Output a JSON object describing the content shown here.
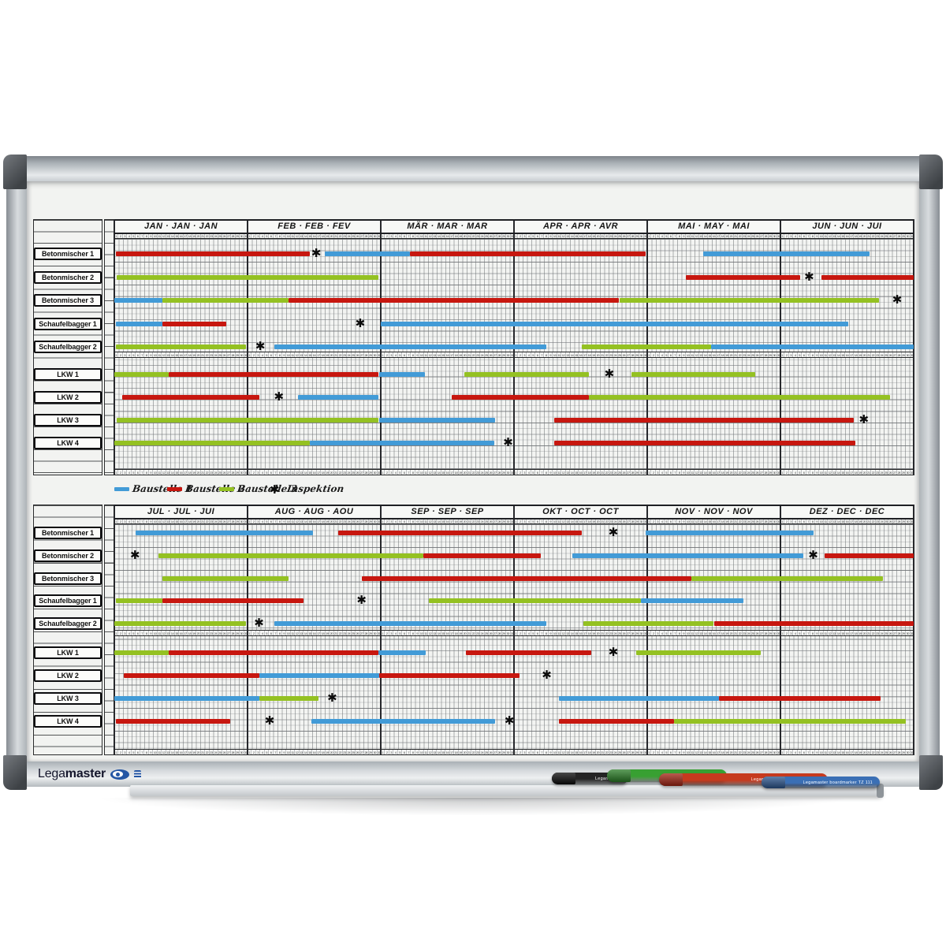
{
  "brand": {
    "prefix": "Lega",
    "suffix": "master"
  },
  "colors": {
    "blue": "#429BD7",
    "red": "#C7170F",
    "green": "#94C122",
    "frame_silver": "#C6CBCF",
    "corner_gray": "#4C5054",
    "surface_white": "#F2F3F1",
    "logo_blue": "#2456A4"
  },
  "legend": {
    "items": [
      {
        "key": "blue",
        "label": "Baustelle 1"
      },
      {
        "key": "red",
        "label": "Baustelle 2"
      },
      {
        "key": "green",
        "label": "Baustelle 3"
      }
    ],
    "inspection": {
      "symbol": "✱",
      "label": "Inspektion"
    }
  },
  "tray_markers": [
    {
      "color": "#242424",
      "cap": "#0a0a0a",
      "text": "Legamaster"
    },
    {
      "color": "#38a032",
      "cap": "#2a7d26",
      "text": ""
    },
    {
      "color": "#c63a1e",
      "cap": "#a32413",
      "text": "Legamaster  boardmarker TZ 111"
    },
    {
      "color": "#3a6fb5",
      "cap": "#2c568f",
      "text": "Legamaster  boardmarker TZ 111"
    }
  ],
  "chart_data": {
    "type": "bar",
    "variant": "year-planner-gantt",
    "days_per_month": 31,
    "resources": [
      "Betonmischer 1",
      "Betonmischer 2",
      "Betonmischer 3",
      "Schaufelbagger 1",
      "Schaufelbagger 2",
      "LKW 1",
      "LKW 2",
      "LKW 3",
      "LKW 4"
    ],
    "legend_note": "bar positions are in months from start of half-year (0-6); colors keyed to legend Baustelle 1=blue, 2=red, 3=green; marks are Inspektion asterisks",
    "halves": [
      {
        "months": [
          "JAN · JAN · JAN",
          "FEB · FEB · FEV",
          "MÄR · MAR · MAR",
          "APR · APR · AVR",
          "MAI · MAY · MAI",
          "JUN · JUN · JUI"
        ],
        "bars": [
          {
            "row": 0,
            "segments": [
              [
                "red",
                0.01,
                1.47
              ],
              [
                "blue",
                1.58,
                2.22
              ],
              [
                "red",
                2.22,
                3.99
              ],
              [
                "blue",
                4.42,
                5.67
              ]
            ],
            "marks": [
              1.52
            ]
          },
          {
            "row": 1,
            "segments": [
              [
                "green",
                0.02,
                1.98
              ],
              [
                "red",
                4.29,
                5.15
              ],
              [
                "red",
                5.31,
                6.0
              ]
            ],
            "marks": [
              5.22
            ]
          },
          {
            "row": 2,
            "segments": [
              [
                "blue",
                0.0,
                0.36
              ],
              [
                "green",
                0.36,
                1.31
              ],
              [
                "red",
                1.31,
                3.79
              ],
              [
                "green",
                3.79,
                5.74
              ]
            ],
            "marks": [
              5.88
            ]
          },
          {
            "row": 3,
            "segments": [
              [
                "blue",
                0.01,
                0.36
              ],
              [
                "red",
                0.36,
                0.84
              ],
              [
                "blue",
                2.0,
                5.51
              ]
            ],
            "marks": [
              1.85
            ]
          },
          {
            "row": 4,
            "segments": [
              [
                "green",
                0.01,
                0.99
              ],
              [
                "blue",
                1.2,
                3.24
              ],
              [
                "green",
                3.51,
                4.48
              ],
              [
                "blue",
                4.48,
                6.0
              ]
            ],
            "marks": [
              1.1
            ]
          },
          {
            "row": 5,
            "segments": [
              [
                "green",
                0.0,
                0.41
              ],
              [
                "red",
                0.41,
                1.98
              ],
              [
                "blue",
                1.99,
                2.33
              ],
              [
                "green",
                2.63,
                3.56
              ],
              [
                "green",
                3.88,
                4.81
              ]
            ],
            "marks": [
              3.72
            ]
          },
          {
            "row": 6,
            "segments": [
              [
                "red",
                0.06,
                1.09
              ],
              [
                "blue",
                1.38,
                1.98
              ],
              [
                "red",
                2.53,
                3.56
              ],
              [
                "green",
                3.56,
                5.82
              ]
            ],
            "marks": [
              1.24
            ]
          },
          {
            "row": 7,
            "segments": [
              [
                "green",
                0.02,
                1.98
              ],
              [
                "blue",
                1.99,
                2.86
              ],
              [
                "red",
                3.3,
                5.55
              ]
            ],
            "marks": [
              5.63
            ]
          },
          {
            "row": 8,
            "segments": [
              [
                "green",
                0.0,
                1.47
              ],
              [
                "blue",
                1.47,
                2.85
              ],
              [
                "red",
                3.3,
                5.56
              ]
            ],
            "marks": [
              2.96
            ]
          }
        ]
      },
      {
        "months": [
          "JUL · JUL · JUI",
          "AUG · AUG · AOU",
          "SEP · SEP · SEP",
          "OKT · OCT · OCT",
          "NOV · NOV · NOV",
          "DEZ · DEC · DEC"
        ],
        "bars": [
          {
            "row": 0,
            "segments": [
              [
                "blue",
                0.16,
                1.49
              ],
              [
                "red",
                1.68,
                3.51
              ],
              [
                "blue",
                3.99,
                5.25
              ]
            ],
            "marks": [
              3.75
            ]
          },
          {
            "row": 1,
            "segments": [
              [
                "green",
                0.33,
                2.32
              ],
              [
                "red",
                2.32,
                3.2
              ],
              [
                "blue",
                3.44,
                5.17
              ],
              [
                "red",
                5.33,
                6.0
              ]
            ],
            "marks": [
              0.16,
              5.25
            ]
          },
          {
            "row": 2,
            "segments": [
              [
                "green",
                0.36,
                1.31
              ],
              [
                "red",
                1.86,
                4.33
              ],
              [
                "green",
                4.33,
                5.77
              ]
            ],
            "marks": []
          },
          {
            "row": 3,
            "segments": [
              [
                "green",
                0.01,
                0.36
              ],
              [
                "red",
                0.36,
                1.42
              ],
              [
                "green",
                2.36,
                3.95
              ],
              [
                "blue",
                3.95,
                4.72
              ]
            ],
            "marks": [
              1.86
            ]
          },
          {
            "row": 4,
            "segments": [
              [
                "green",
                0.0,
                0.99
              ],
              [
                "blue",
                1.2,
                3.24
              ],
              [
                "green",
                3.52,
                4.5
              ],
              [
                "red",
                4.5,
                6.0
              ]
            ],
            "marks": [
              1.09
            ]
          },
          {
            "row": 5,
            "segments": [
              [
                "green",
                0.0,
                0.41
              ],
              [
                "red",
                0.41,
                1.98
              ],
              [
                "blue",
                1.98,
                2.34
              ],
              [
                "red",
                2.64,
                3.58
              ],
              [
                "green",
                3.92,
                4.85
              ]
            ],
            "marks": [
              3.75
            ]
          },
          {
            "row": 6,
            "segments": [
              [
                "red",
                0.07,
                1.09
              ],
              [
                "blue",
                1.09,
                1.99
              ],
              [
                "red",
                1.99,
                3.04
              ]
            ],
            "marks": [
              3.25
            ]
          },
          {
            "row": 7,
            "segments": [
              [
                "blue",
                0.0,
                1.09
              ],
              [
                "green",
                1.09,
                1.53
              ],
              [
                "blue",
                3.34,
                4.54
              ],
              [
                "red",
                4.54,
                5.75
              ]
            ],
            "marks": [
              1.64
            ]
          },
          {
            "row": 8,
            "segments": [
              [
                "red",
                0.01,
                0.87
              ],
              [
                "blue",
                1.48,
                2.86
              ],
              [
                "red",
                3.34,
                4.2
              ],
              [
                "green",
                4.2,
                5.94
              ]
            ],
            "marks": [
              1.17,
              2.97
            ]
          }
        ]
      }
    ]
  }
}
